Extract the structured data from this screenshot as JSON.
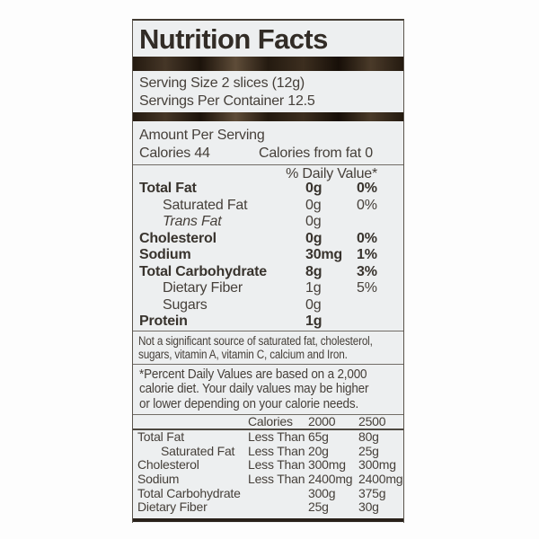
{
  "title": "Nutrition Facts",
  "serving": {
    "size": "Serving Size 2 slices (12g)",
    "per_container": "Servings Per Container 12.5"
  },
  "amount_per_serving": "Amount Per Serving",
  "calories": "Calories 44",
  "calories_from_fat": "Calories from fat 0",
  "daily_value_header": "% Daily Value*",
  "nutrients": [
    {
      "name": "Total Fat",
      "amount": "0g",
      "dv": "0%"
    },
    {
      "name": "Saturated Fat",
      "amount": "0g",
      "dv": "0%"
    },
    {
      "name": "Trans Fat",
      "amount": "0g",
      "dv": ""
    },
    {
      "name": "Cholesterol",
      "amount": "0g",
      "dv": "0%"
    },
    {
      "name": "Sodium",
      "amount": "30mg",
      "dv": "1%"
    },
    {
      "name": "Total Carbohydrate",
      "amount": "8g",
      "dv": "3%"
    },
    {
      "name": "Dietary Fiber",
      "amount": "1g",
      "dv": "5%"
    },
    {
      "name": "Sugars",
      "amount": "0g",
      "dv": ""
    },
    {
      "name": "Protein",
      "amount": "1g",
      "dv": ""
    }
  ],
  "note_lines": [
    "Not a significant source of saturated fat, cholesterol,",
    "sugars, vitamin A, vitamin C, calcium and Iron."
  ],
  "footnote_lines": [
    "*Percent Daily Values are based on a 2,000",
    "calorie diet. Your daily values may be higher",
    "or lower depending on your calorie needs."
  ],
  "reference": {
    "header": {
      "calories": "Calories",
      "col2000": "2000",
      "col2500": "2500"
    },
    "rows": [
      {
        "name": "Total Fat",
        "qualifier": "Less Than",
        "v2000": "65g",
        "v2500": "80g"
      },
      {
        "name": "Saturated Fat",
        "qualifier": "Less Than",
        "v2000": "20g",
        "v2500": "25g"
      },
      {
        "name": "Cholesterol",
        "qualifier": "Less Than",
        "v2000": "300mg",
        "v2500": "300mg"
      },
      {
        "name": "Sodium",
        "qualifier": "Less Than",
        "v2000": "2400mg",
        "v2500": "2400mg"
      },
      {
        "name": "Total Carbohydrate",
        "qualifier": "",
        "v2000": "300g",
        "v2500": "375g"
      },
      {
        "name": "Dietary Fiber",
        "qualifier": "",
        "v2000": "25g",
        "v2500": "30g"
      }
    ]
  },
  "colors": {
    "label_background": "#edeff0",
    "ink": "#453f39",
    "title_ink": "#322c26",
    "divider_bar": "#241a10",
    "thin_rule": "#716c66"
  }
}
